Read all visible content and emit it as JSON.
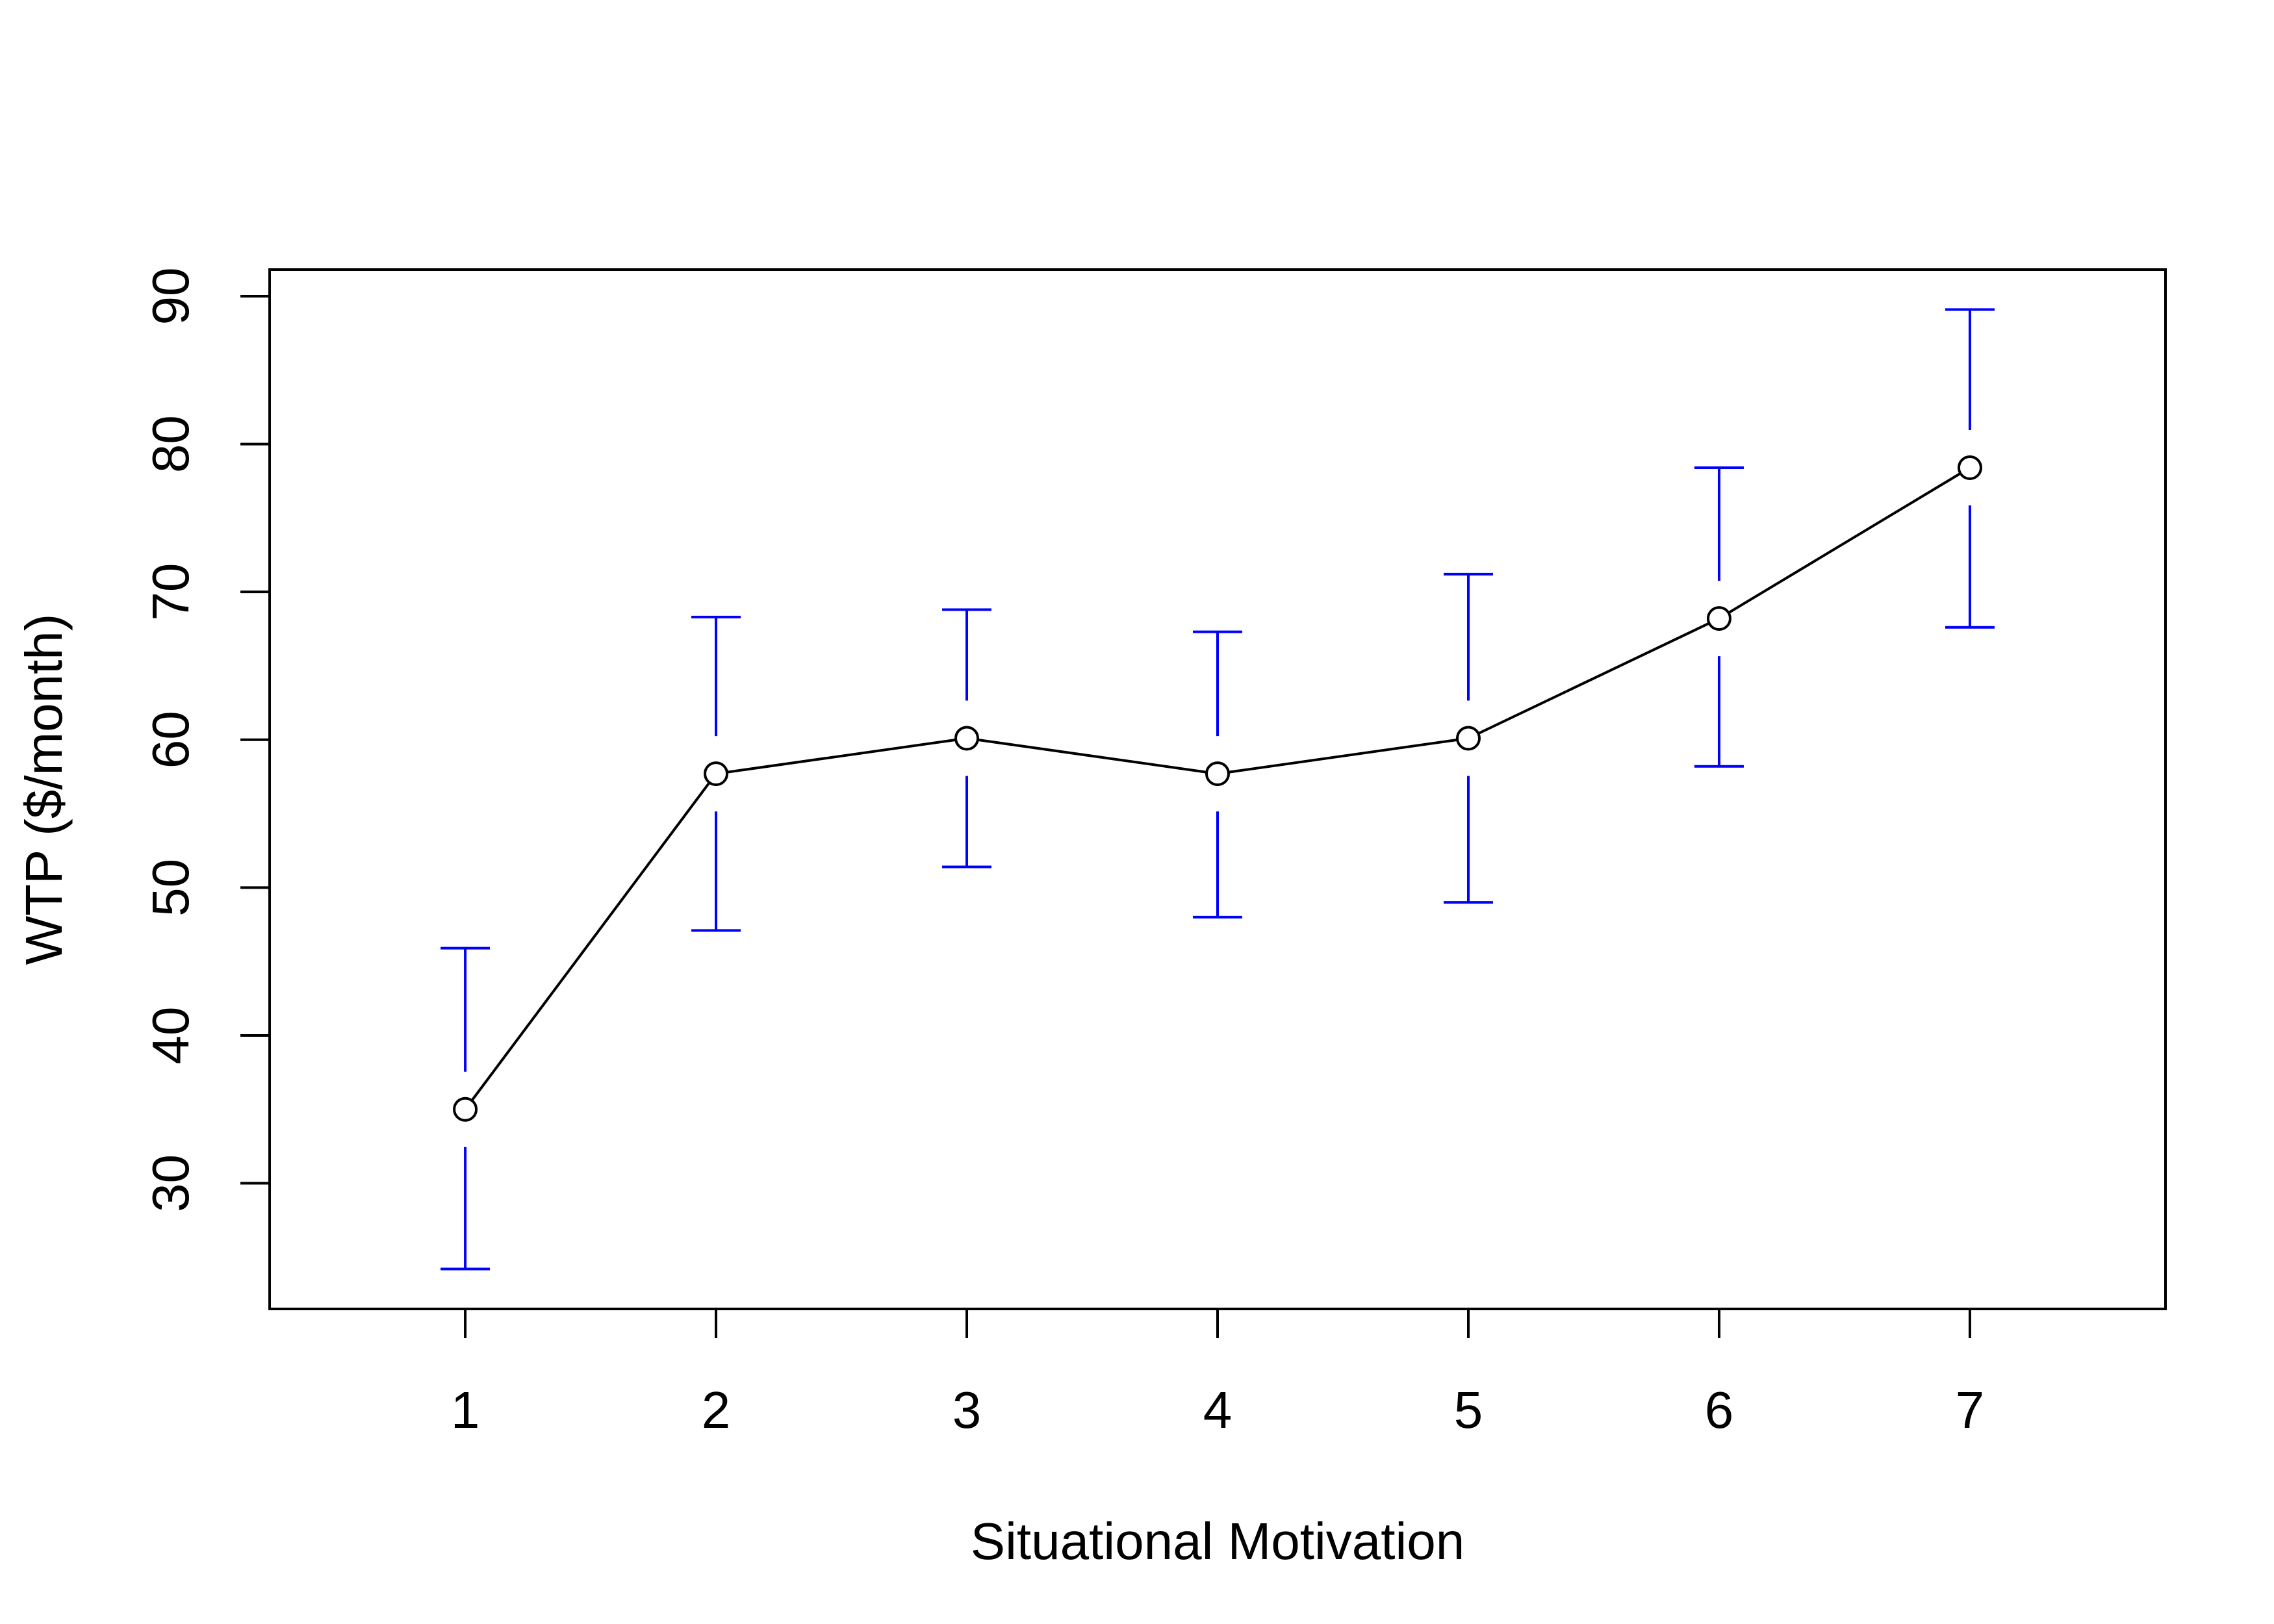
{
  "chart_data": {
    "type": "line",
    "xlabel": "Situational Motivation",
    "ylabel": "WTP ($/month)",
    "x": [
      1,
      2,
      3,
      4,
      5,
      6,
      7
    ],
    "x_tick_labels": [
      "1",
      "2",
      "3",
      "4",
      "5",
      "6",
      "7"
    ],
    "y_ticks": [
      30,
      40,
      50,
      60,
      70,
      80,
      90
    ],
    "y_tick_labels": [
      "30",
      "40",
      "50",
      "60",
      "70",
      "80",
      "90"
    ],
    "xlim": [
      0.22,
      7.78
    ],
    "ylim": [
      21.5,
      91.8
    ],
    "series": [
      {
        "values": [
          35.0,
          57.7,
          60.1,
          57.7,
          60.1,
          68.2,
          78.4
        ],
        "error_lower": [
          24.2,
          47.1,
          51.4,
          48.0,
          49.0,
          58.2,
          67.6
        ],
        "error_upper": [
          45.9,
          68.3,
          68.8,
          67.3,
          71.2,
          78.4,
          89.1
        ]
      }
    ],
    "grid": false,
    "legend": "none",
    "colors": {
      "line": "#000000",
      "error_bars": "#0000ff",
      "axes": "#000000"
    }
  }
}
